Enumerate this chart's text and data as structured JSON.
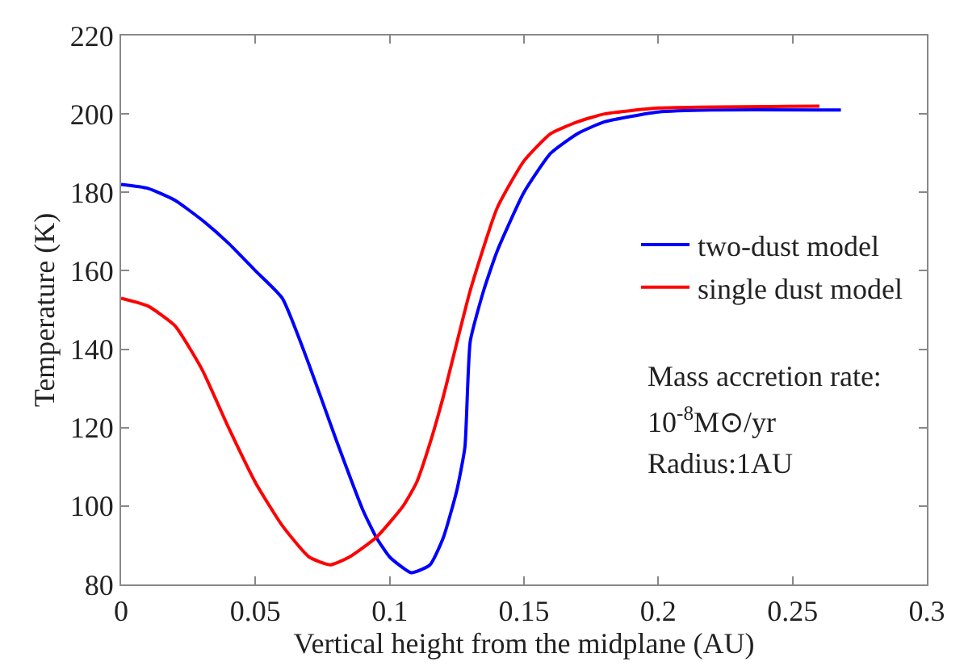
{
  "chart_data": {
    "type": "line",
    "xlabel": "Vertical height from the midplane (AU)",
    "ylabel": "Temperature (K)",
    "xlim": [
      0,
      0.3
    ],
    "xticks": [
      0,
      0.05,
      0.1,
      0.15,
      0.2,
      0.25,
      0.3
    ],
    "ylim": [
      80,
      220
    ],
    "yticks": [
      80,
      100,
      120,
      140,
      160,
      180,
      200,
      220
    ],
    "legend": "right",
    "marker": "none",
    "line_style": "solid",
    "series": [
      {
        "name": "two-dust model",
        "color": "#0000ff",
        "x": [
          0,
          0.01,
          0.02,
          0.03,
          0.04,
          0.05,
          0.06,
          0.07,
          0.08,
          0.09,
          0.095,
          0.1,
          0.108,
          0.115,
          0.12,
          0.125,
          0.128,
          0.13,
          0.135,
          0.14,
          0.15,
          0.16,
          0.17,
          0.18,
          0.2,
          0.22,
          0.268
        ],
        "values": [
          182,
          181,
          178,
          173,
          167,
          160,
          153,
          136,
          117,
          99,
          92,
          87,
          83,
          85,
          92,
          104,
          115,
          142,
          155,
          165,
          180,
          190,
          195,
          198,
          200.5,
          201,
          201
        ]
      },
      {
        "name": "single dust model",
        "color": "#ff0000",
        "x": [
          0,
          0.01,
          0.02,
          0.03,
          0.04,
          0.05,
          0.06,
          0.07,
          0.078,
          0.085,
          0.095,
          0.105,
          0.11,
          0.115,
          0.12,
          0.13,
          0.14,
          0.15,
          0.16,
          0.17,
          0.18,
          0.2,
          0.26
        ],
        "values": [
          153,
          151,
          146,
          135,
          120,
          106,
          95,
          87,
          85,
          87,
          92,
          100,
          106,
          116,
          128,
          155,
          176,
          188,
          195,
          198,
          200,
          201.5,
          202
        ]
      }
    ],
    "annotations": [
      "Mass accretion rate:",
      "10$^{-8}$M⊙/yr",
      "Radius:1AU"
    ]
  }
}
